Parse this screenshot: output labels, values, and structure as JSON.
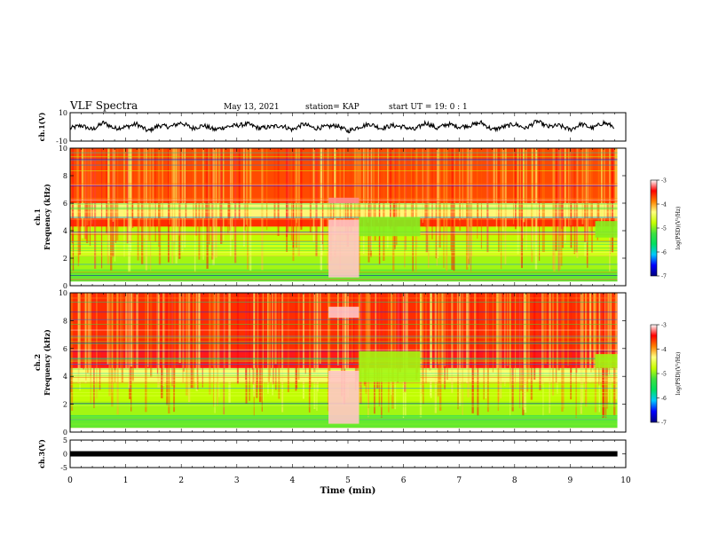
{
  "header": {
    "title": "VLF Spectra",
    "date": "May 13, 2021",
    "station": "station= KAP",
    "start": "start  UT =   19: 0  : 1"
  },
  "colorbar": {
    "label": "log(PSD)(V²/Hz)",
    "ticks": [
      "-3",
      "-4",
      "-5",
      "-6",
      "-7"
    ],
    "range": [
      -7,
      -3
    ],
    "colors": [
      "#000080",
      "#0000ff",
      "#00c8ff",
      "#00e060",
      "#40e040",
      "#c8ff00",
      "#ffff80",
      "#ff8000",
      "#ff0000",
      "#ffffff"
    ]
  },
  "chart_data": [
    {
      "type": "line",
      "name": "ch1-waveform",
      "ylabel": "ch.1(V)",
      "ylim": [
        -10,
        10
      ],
      "yticks": [
        "10",
        "-10"
      ],
      "xlim": [
        0,
        9.85
      ],
      "x": [
        0,
        0.2,
        0.4,
        0.6,
        0.8,
        1.0,
        1.2,
        1.4,
        1.6,
        1.8,
        2.0,
        2.2,
        2.4,
        2.6,
        2.8,
        3.0,
        3.2,
        3.4,
        3.6,
        3.8,
        4.0,
        4.2,
        4.4,
        4.6,
        4.8,
        5.0,
        5.2,
        5.4,
        5.6,
        5.8,
        6.0,
        6.2,
        6.4,
        6.6,
        6.8,
        7.0,
        7.2,
        7.4,
        7.6,
        7.8,
        8.0,
        8.2,
        8.4,
        8.6,
        8.8,
        9.0,
        9.2,
        9.4,
        9.6,
        9.8
      ],
      "y": [
        -1,
        1,
        -2,
        3,
        -1,
        0,
        2,
        -3,
        1,
        0,
        3,
        -1,
        1,
        -2,
        0,
        1,
        2,
        -1,
        0,
        1,
        -2,
        2,
        -1,
        0,
        1,
        -3,
        0,
        2,
        -1,
        1,
        0,
        -2,
        3,
        -1,
        2,
        0,
        1,
        3,
        -2,
        0,
        2,
        -1,
        4,
        0,
        1,
        -2,
        2,
        -1,
        3,
        0
      ]
    },
    {
      "type": "heatmap",
      "name": "ch1-spectrogram",
      "ylabel": "ch.1\nFrequency (kHz)",
      "ylim": [
        0,
        10
      ],
      "yticks": [
        "0",
        "2",
        "4",
        "6",
        "8",
        "10"
      ],
      "xlim": [
        0,
        9.85
      ],
      "background_level": -4.2,
      "bands": [
        {
          "f": [
            0.3,
            1.2
          ],
          "level": -5.1
        },
        {
          "f": [
            1.2,
            2.2
          ],
          "level": -4.9
        },
        {
          "f": [
            2.2,
            3.2
          ],
          "level": -4.7
        },
        {
          "f": [
            3.2,
            4.3
          ],
          "level": -4.8
        },
        {
          "f": [
            4.3,
            4.9
          ],
          "level": -3.6
        },
        {
          "f": [
            4.9,
            6.0
          ],
          "level": -4.3
        },
        {
          "f": [
            6.0,
            10.0
          ],
          "level": -3.7
        }
      ],
      "events": [
        {
          "t": [
            4.65,
            5.2
          ],
          "f": [
            0.6,
            4.8
          ],
          "level": -3.1
        },
        {
          "t": [
            4.65,
            5.2
          ],
          "f": [
            6.0,
            6.4
          ],
          "level": -3.2
        },
        {
          "t": [
            5.2,
            6.3
          ],
          "f": [
            3.6,
            5.0
          ],
          "level": -5.0
        },
        {
          "t": [
            9.45,
            9.85
          ],
          "f": [
            3.5,
            4.7
          ],
          "level": -5.0
        }
      ]
    },
    {
      "type": "heatmap",
      "name": "ch2-spectrogram",
      "ylabel": "ch.2\nFrequency (kHz)",
      "ylim": [
        0,
        10
      ],
      "yticks": [
        "0",
        "2",
        "4",
        "6",
        "8",
        "10"
      ],
      "xlim": [
        0,
        9.85
      ],
      "background_level": -4.0,
      "bands": [
        {
          "f": [
            0.3,
            1.2
          ],
          "level": -5.1
        },
        {
          "f": [
            1.2,
            2.2
          ],
          "level": -4.9
        },
        {
          "f": [
            2.2,
            3.6
          ],
          "level": -4.8
        },
        {
          "f": [
            3.6,
            4.6
          ],
          "level": -4.4
        },
        {
          "f": [
            4.6,
            5.8
          ],
          "level": -3.4
        },
        {
          "f": [
            5.8,
            10.0
          ],
          "level": -3.6
        }
      ],
      "events": [
        {
          "t": [
            4.65,
            5.2
          ],
          "f": [
            0.6,
            4.4
          ],
          "level": -3.1
        },
        {
          "t": [
            4.65,
            5.2
          ],
          "f": [
            8.2,
            9.0
          ],
          "level": -3.1
        },
        {
          "t": [
            5.2,
            6.3
          ],
          "f": [
            3.6,
            5.8
          ],
          "level": -4.9
        },
        {
          "t": [
            9.45,
            9.85
          ],
          "f": [
            4.6,
            5.6
          ],
          "level": -4.9
        }
      ]
    },
    {
      "type": "line",
      "name": "ch3-waveform",
      "ylabel": "ch.3(V)",
      "ylim": [
        -5,
        5
      ],
      "yticks": [
        "5",
        "0",
        "-5"
      ],
      "xlim": [
        0,
        9.85
      ],
      "x": [
        0,
        9.85
      ],
      "y": [
        0,
        0
      ]
    }
  ],
  "xaxis": {
    "label": "Time  (min)",
    "ticks": [
      "0",
      "1",
      "2",
      "3",
      "4",
      "5",
      "6",
      "7",
      "8",
      "9",
      "10"
    ],
    "range": [
      0,
      10
    ]
  }
}
